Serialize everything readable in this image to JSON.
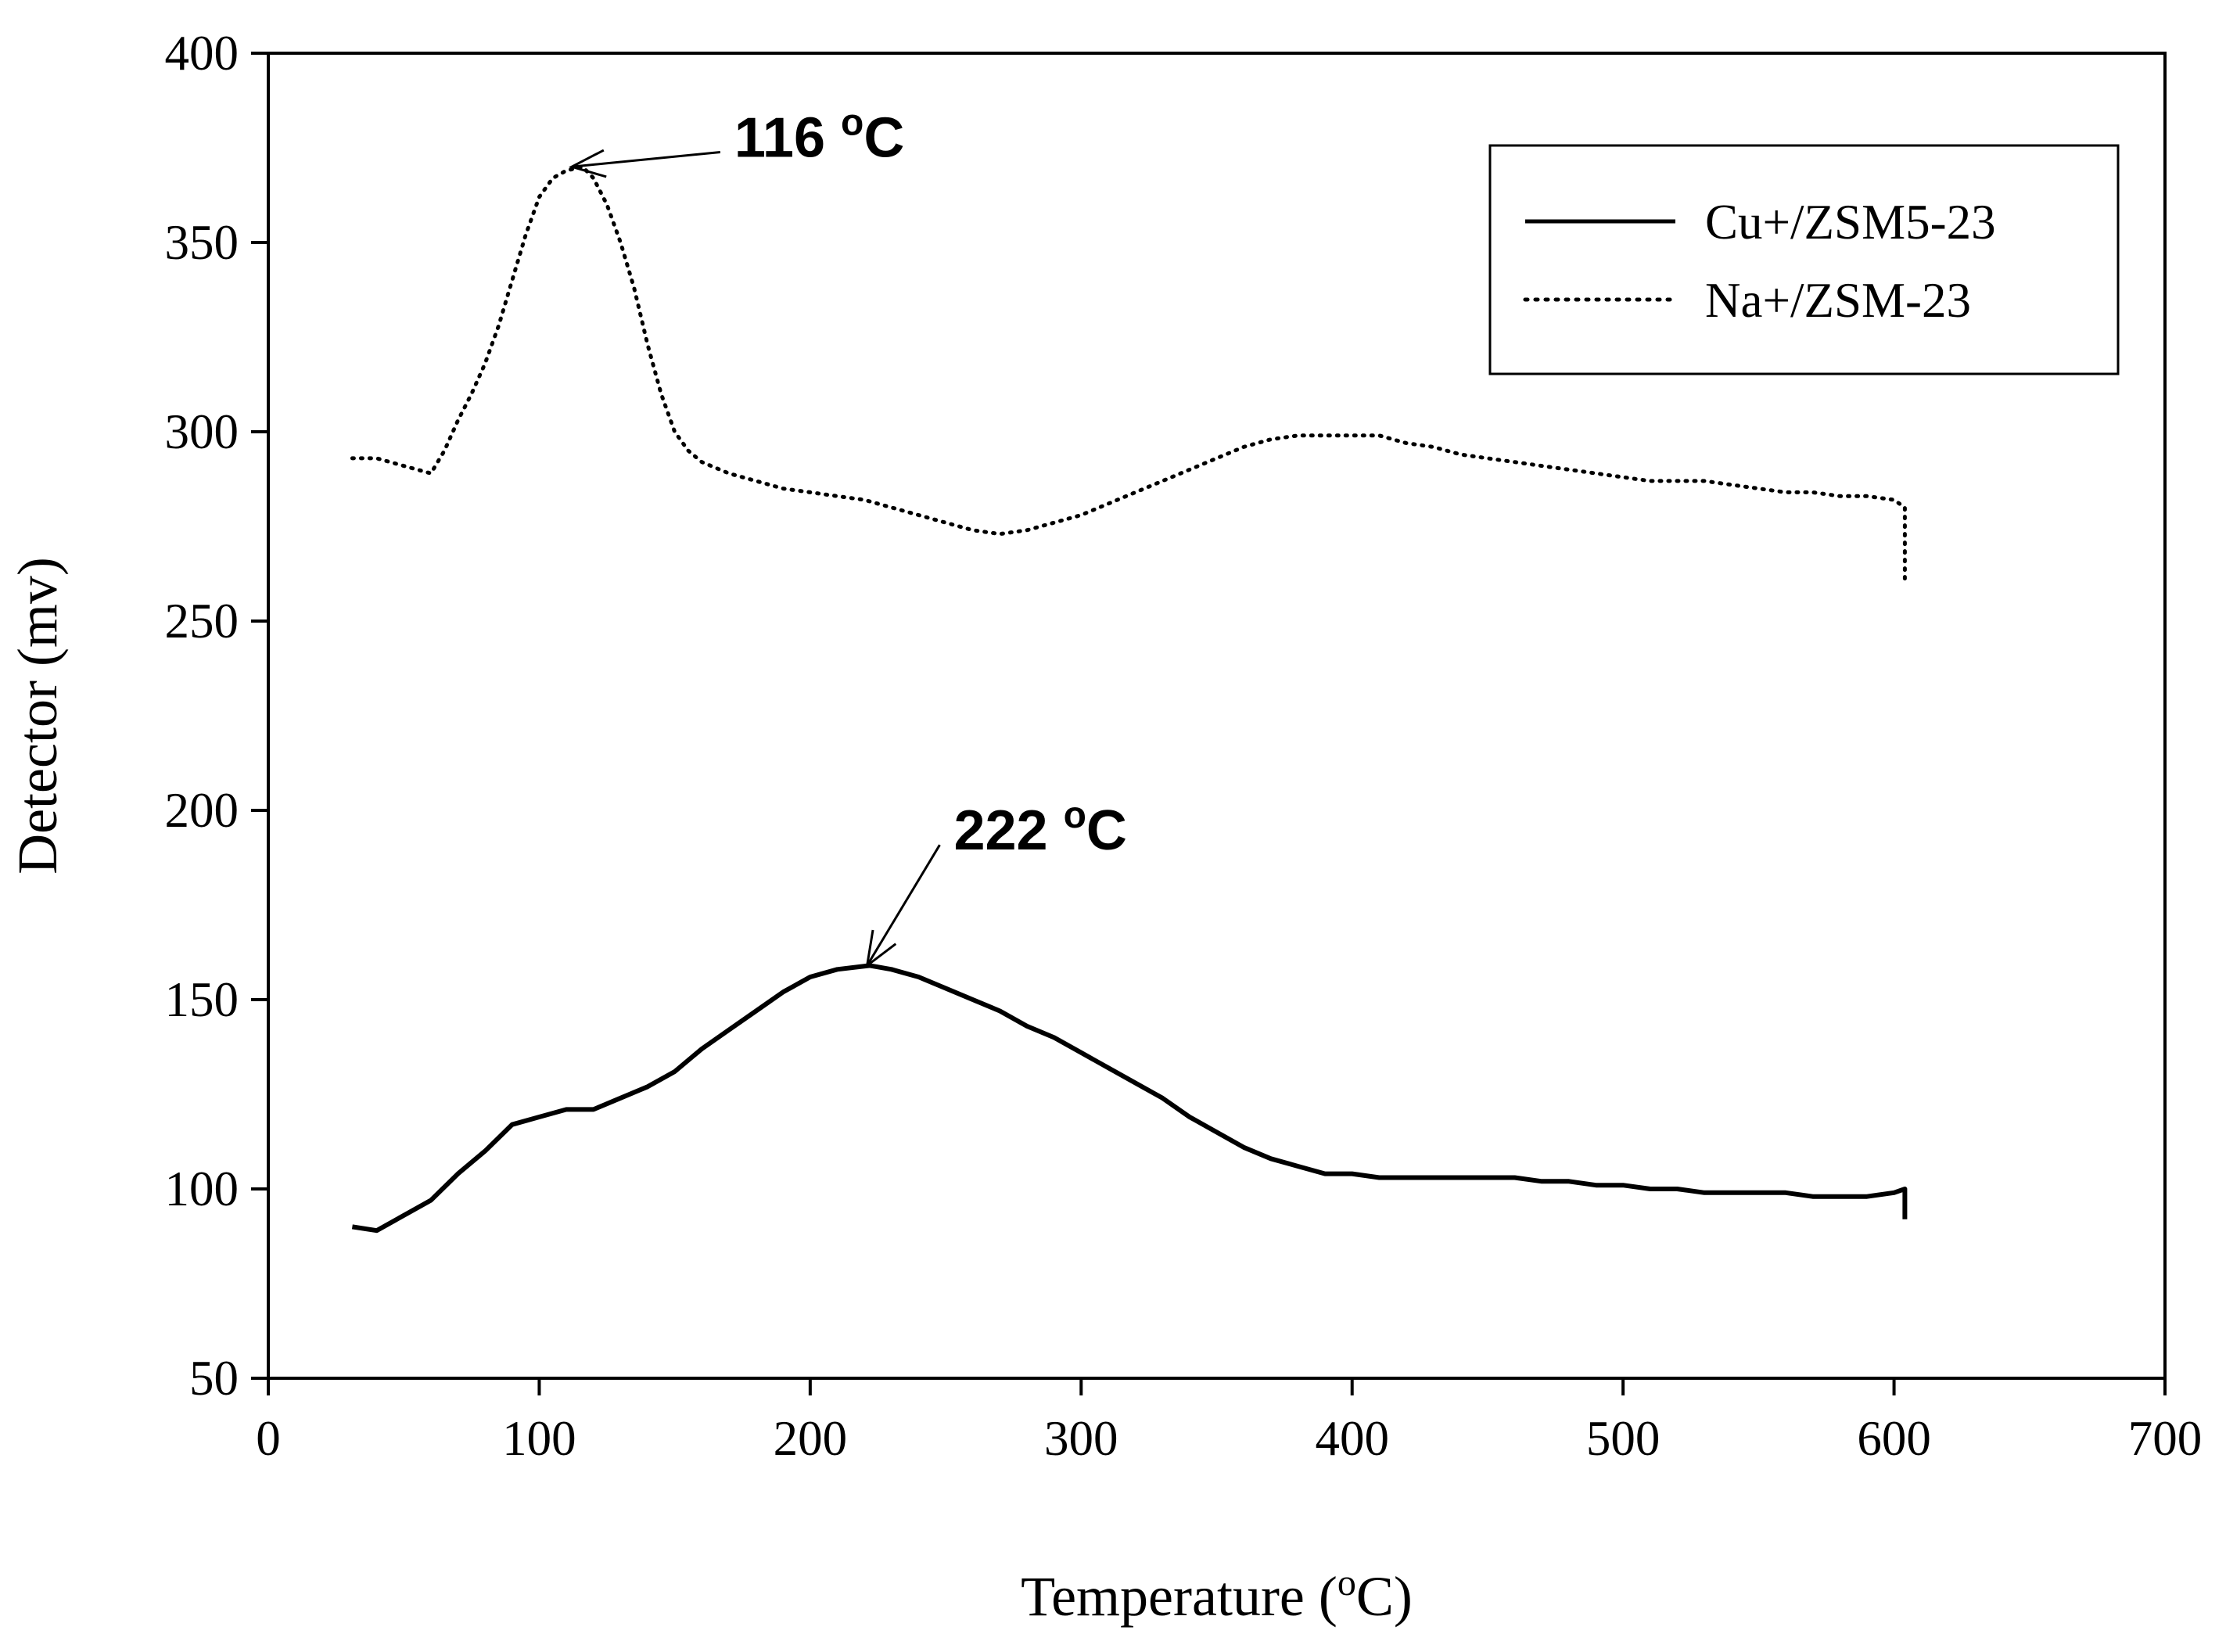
{
  "chart_data": {
    "type": "line",
    "title": "",
    "xlabel_prefix": "Temperature (",
    "xlabel_sup": "o",
    "xlabel_suffix": "C)",
    "ylabel": "Detector (mv)",
    "xlim": [
      0,
      700
    ],
    "ylim": [
      50,
      400
    ],
    "xticks": [
      0,
      100,
      200,
      300,
      400,
      500,
      600,
      700
    ],
    "yticks": [
      50,
      100,
      150,
      200,
      250,
      300,
      350,
      400
    ],
    "legend_position": "top-right",
    "series": [
      {
        "name": "Cu+/ZSM5-23",
        "style": "solid",
        "points": [
          [
            31,
            90
          ],
          [
            40,
            89
          ],
          [
            50,
            93
          ],
          [
            60,
            97
          ],
          [
            70,
            104
          ],
          [
            80,
            110
          ],
          [
            90,
            117
          ],
          [
            100,
            119
          ],
          [
            110,
            121
          ],
          [
            120,
            121
          ],
          [
            130,
            124
          ],
          [
            140,
            127
          ],
          [
            150,
            131
          ],
          [
            160,
            137
          ],
          [
            170,
            142
          ],
          [
            180,
            147
          ],
          [
            190,
            152
          ],
          [
            200,
            156
          ],
          [
            210,
            158
          ],
          [
            222,
            159
          ],
          [
            230,
            158
          ],
          [
            240,
            156
          ],
          [
            250,
            153
          ],
          [
            260,
            150
          ],
          [
            270,
            147
          ],
          [
            280,
            143
          ],
          [
            290,
            140
          ],
          [
            300,
            136
          ],
          [
            310,
            132
          ],
          [
            320,
            128
          ],
          [
            330,
            124
          ],
          [
            340,
            119
          ],
          [
            350,
            115
          ],
          [
            360,
            111
          ],
          [
            370,
            108
          ],
          [
            380,
            106
          ],
          [
            390,
            104
          ],
          [
            400,
            104
          ],
          [
            410,
            103
          ],
          [
            420,
            103
          ],
          [
            430,
            103
          ],
          [
            440,
            103
          ],
          [
            450,
            103
          ],
          [
            460,
            103
          ],
          [
            470,
            102
          ],
          [
            480,
            102
          ],
          [
            490,
            101
          ],
          [
            500,
            101
          ],
          [
            510,
            100
          ],
          [
            520,
            100
          ],
          [
            530,
            99
          ],
          [
            540,
            99
          ],
          [
            550,
            99
          ],
          [
            560,
            99
          ],
          [
            570,
            98
          ],
          [
            580,
            98
          ],
          [
            590,
            98
          ],
          [
            600,
            99
          ],
          [
            604,
            100
          ],
          [
            604,
            92
          ]
        ]
      },
      {
        "name": "Na+/ZSM-23",
        "style": "dotted",
        "points": [
          [
            31,
            293
          ],
          [
            40,
            293
          ],
          [
            50,
            291
          ],
          [
            60,
            289
          ],
          [
            65,
            295
          ],
          [
            70,
            303
          ],
          [
            75,
            310
          ],
          [
            80,
            318
          ],
          [
            85,
            328
          ],
          [
            90,
            340
          ],
          [
            95,
            352
          ],
          [
            100,
            362
          ],
          [
            105,
            367
          ],
          [
            110,
            369
          ],
          [
            116,
            370
          ],
          [
            120,
            367
          ],
          [
            125,
            360
          ],
          [
            130,
            350
          ],
          [
            135,
            338
          ],
          [
            140,
            323
          ],
          [
            145,
            310
          ],
          [
            150,
            300
          ],
          [
            155,
            295
          ],
          [
            160,
            292
          ],
          [
            170,
            289
          ],
          [
            180,
            287
          ],
          [
            190,
            285
          ],
          [
            200,
            284
          ],
          [
            210,
            283
          ],
          [
            220,
            282
          ],
          [
            230,
            280
          ],
          [
            240,
            278
          ],
          [
            250,
            276
          ],
          [
            260,
            274
          ],
          [
            270,
            273
          ],
          [
            280,
            274
          ],
          [
            290,
            276
          ],
          [
            300,
            278
          ],
          [
            310,
            281
          ],
          [
            320,
            284
          ],
          [
            330,
            287
          ],
          [
            340,
            290
          ],
          [
            350,
            293
          ],
          [
            360,
            296
          ],
          [
            370,
            298
          ],
          [
            380,
            299
          ],
          [
            390,
            299
          ],
          [
            400,
            299
          ],
          [
            410,
            299
          ],
          [
            420,
            297
          ],
          [
            430,
            296
          ],
          [
            440,
            294
          ],
          [
            450,
            293
          ],
          [
            460,
            292
          ],
          [
            470,
            291
          ],
          [
            480,
            290
          ],
          [
            490,
            289
          ],
          [
            500,
            288
          ],
          [
            510,
            287
          ],
          [
            520,
            287
          ],
          [
            530,
            287
          ],
          [
            540,
            286
          ],
          [
            550,
            285
          ],
          [
            560,
            284
          ],
          [
            570,
            284
          ],
          [
            580,
            283
          ],
          [
            590,
            283
          ],
          [
            600,
            282
          ],
          [
            604,
            280
          ],
          [
            604,
            260
          ]
        ]
      }
    ],
    "annotations": [
      {
        "value": "116",
        "unit_sup": "o",
        "unit": "C",
        "x": 112,
        "y": 370,
        "label_x": 172,
        "label_y": 378
      },
      {
        "value": "222",
        "unit_sup": "o",
        "unit": "C",
        "x": 221,
        "y": 159,
        "label_x": 253,
        "label_y": 195
      }
    ]
  }
}
